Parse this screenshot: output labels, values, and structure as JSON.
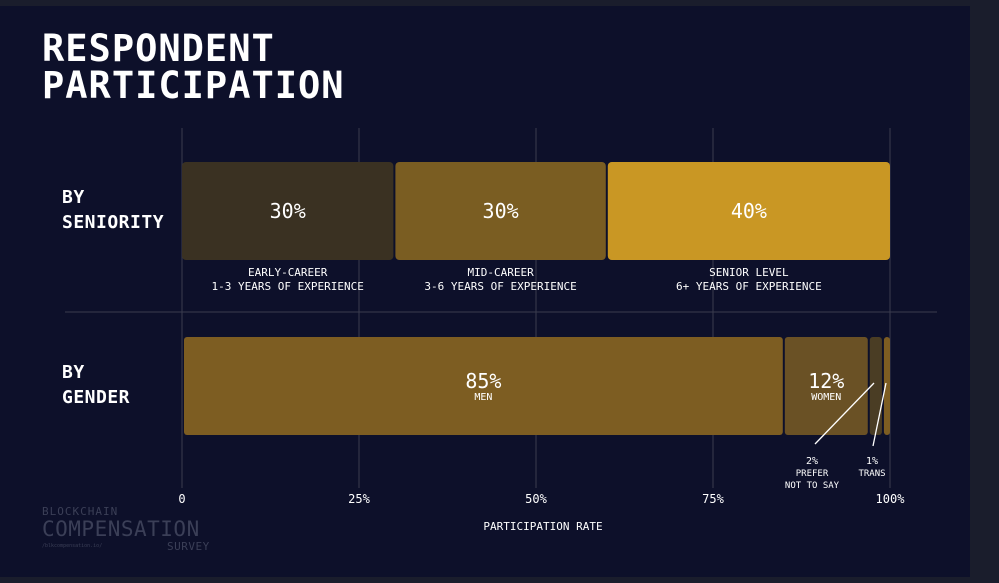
{
  "title": [
    "RESPONDENT",
    "PARTICIPATION"
  ],
  "colors": {
    "background": "#0d102a",
    "early": "#3a3122",
    "mid": "#7a5d22",
    "senior": "#c99724",
    "men": "#7d5d22",
    "women": "#6a5125",
    "prefer": "#4a3d24",
    "trans": "#7d5d22",
    "grid": "#3a3c4e",
    "text": "#ffffff"
  },
  "chart_data": {
    "type": "bar",
    "orientation": "horizontal-stacked",
    "xlabel": "PARTICIPATION RATE",
    "xlim": [
      0,
      100
    ],
    "xticks": [
      "0",
      "25%",
      "50%",
      "75%",
      "100%"
    ],
    "xtick_values": [
      0,
      25,
      50,
      75,
      100
    ],
    "grid": true,
    "rows": [
      {
        "label": [
          "BY",
          "SENIORITY"
        ],
        "segments": [
          {
            "value": 30,
            "value_label": "30%",
            "caption": [
              "EARLY-CAREER",
              "1-3 YEARS OF EXPERIENCE"
            ],
            "color_key": "early"
          },
          {
            "value": 30,
            "value_label": "30%",
            "caption": [
              "MID-CAREER",
              "3-6 YEARS OF EXPERIENCE"
            ],
            "color_key": "mid"
          },
          {
            "value": 40,
            "value_label": "40%",
            "caption": [
              "SENIOR LEVEL",
              "6+ YEARS OF EXPERIENCE"
            ],
            "color_key": "senior"
          }
        ]
      },
      {
        "label": [
          "BY",
          "GENDER"
        ],
        "segments": [
          {
            "value": 85,
            "value_label": "85%",
            "inner_caption": "MEN",
            "color_key": "men"
          },
          {
            "value": 12,
            "value_label": "12%",
            "inner_caption": "WOMEN",
            "color_key": "women"
          },
          {
            "value": 2,
            "value_label": "2%",
            "callout": [
              "PREFER",
              "NOT TO SAY"
            ],
            "color_key": "prefer"
          },
          {
            "value": 1,
            "value_label": "1%",
            "callout": [
              "TRANS"
            ],
            "color_key": "trans"
          }
        ]
      }
    ]
  },
  "logo": {
    "line1": "BLOCKCHAIN",
    "line2": "COMPENSATION",
    "line3": "/blkcompensation.io/",
    "line4": "SURVEY"
  }
}
